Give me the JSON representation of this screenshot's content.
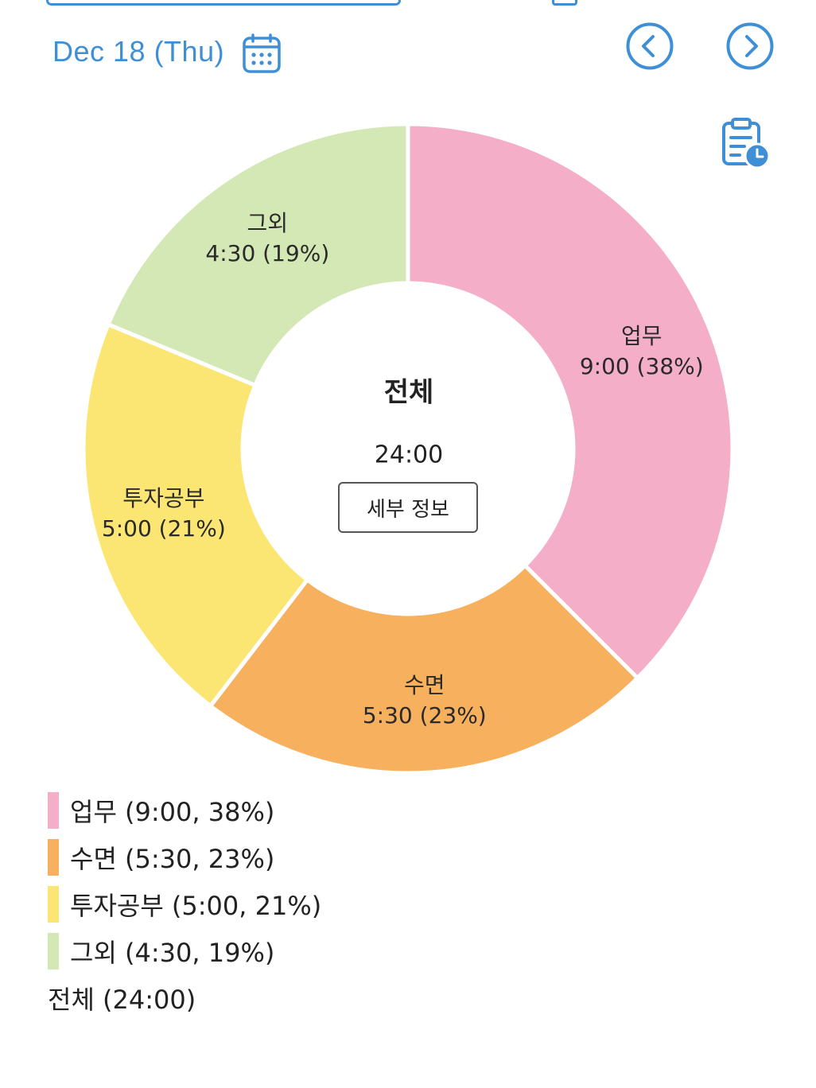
{
  "header": {
    "date_label": "Dec 18 (Thu)",
    "calendar_icon": "calendar-icon",
    "prev_icon": "chevron-left-circle-icon",
    "next_icon": "chevron-right-circle-icon",
    "report_icon": "clipboard-clock-icon"
  },
  "colors": {
    "accent": "#3f8fd6",
    "work": "#f5aec8",
    "sleep": "#f7b05d",
    "invest_study": "#fbe673",
    "other": "#d4e8b6"
  },
  "center": {
    "title": "전체",
    "total": "24:00",
    "detail_button": "세부 정보"
  },
  "chart_data": {
    "type": "pie",
    "donut": true,
    "categories": [
      "업무",
      "수면",
      "투자공부",
      "그외"
    ],
    "values": [
      9.0,
      5.5,
      5.0,
      4.5
    ],
    "value_labels": [
      "9:00 (38%)",
      "5:30 (23%)",
      "5:00 (21%)",
      "4:30 (19%)"
    ],
    "colors": [
      "#f5aec8",
      "#f7b05d",
      "#fbe673",
      "#d4e8b6"
    ],
    "total": 24
  },
  "legend": {
    "items": [
      {
        "label": "업무 (9:00, 38%)"
      },
      {
        "label": "수면 (5:30, 23%)"
      },
      {
        "label": "투자공부 (5:00, 21%)"
      },
      {
        "label": "그외 (4:30, 19%)"
      }
    ],
    "total_label": "전체 (24:00)"
  }
}
